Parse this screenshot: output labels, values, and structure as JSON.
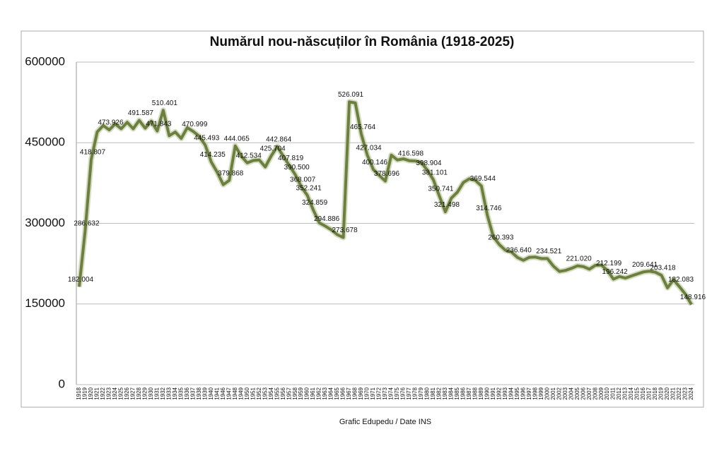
{
  "chart_data": {
    "type": "line",
    "title": "Numărul nou-născuților în România (1918-2025)",
    "source": "Grafic Edupedu / Date INS",
    "categories": [
      "1918",
      "1919",
      "1920",
      "1921",
      "1922",
      "1923",
      "1924",
      "1925",
      "1926",
      "1927",
      "1928",
      "1929",
      "1930",
      "1931",
      "1932",
      "1933",
      "1934",
      "1935",
      "1936",
      "1937",
      "1938",
      "1939",
      "1940",
      "1941",
      "1946",
      "1947",
      "1948",
      "1949",
      "1950",
      "1951",
      "1952",
      "1953",
      "1954",
      "1955",
      "1956",
      "1957",
      "1958",
      "1959",
      "1960",
      "1961",
      "1962",
      "1963",
      "1964",
      "1965",
      "1966",
      "1967",
      "1968",
      "1969",
      "1970",
      "1971",
      "1972",
      "1973",
      "1974",
      "1975",
      "1976",
      "1977",
      "1978",
      "1979",
      "1980",
      "1981",
      "1982",
      "1983",
      "1984",
      "1985",
      "1986",
      "1987",
      "1988",
      "1989",
      "1990",
      "1991",
      "1992",
      "1993",
      "1994",
      "1995",
      "1996",
      "1997",
      "1998",
      "1999",
      "2000",
      "2001",
      "2002",
      "2003",
      "2004",
      "2005",
      "2006",
      "2007",
      "2008",
      "2009",
      "2010",
      "2011",
      "2012",
      "2013",
      "2014",
      "2015",
      "2016",
      "2017",
      "2018",
      "2019",
      "2020",
      "2021",
      "2022",
      "2023",
      "2024"
    ],
    "values": [
      182004,
      286632,
      418807,
      470000,
      482000,
      473926,
      485000,
      476000,
      488000,
      476000,
      491587,
      477000,
      490000,
      471843,
      510401,
      463000,
      470000,
      458000,
      478000,
      470999,
      462000,
      445493,
      414235,
      395000,
      372000,
      379868,
      444065,
      425000,
      412534,
      417000,
      418000,
      405000,
      425704,
      442864,
      425000,
      407819,
      390500,
      368007,
      352241,
      324859,
      301000,
      294886,
      288000,
      279000,
      273678,
      526091,
      524000,
      465764,
      427034,
      400146,
      389000,
      378696,
      427000,
      418000,
      420000,
      416598,
      416000,
      413000,
      398904,
      381101,
      350741,
      321498,
      347000,
      358000,
      376000,
      383000,
      380000,
      369544,
      314746,
      275000,
      260393,
      250000,
      246736,
      236640,
      231348,
      236891,
      237297,
      234600,
      234521,
      220368,
      210529,
      212459,
      216261,
      221020,
      219483,
      214728,
      221900,
      222388,
      212199,
      196242,
      201104,
      198216,
      202223,
      206000,
      209641,
      211000,
      209000,
      203418,
      180000,
      195000,
      182083,
      168000,
      148916
    ],
    "value_labels": [
      "182.004",
      "286.632",
      "418.807",
      null,
      null,
      "473.926",
      null,
      null,
      null,
      null,
      "491.587",
      null,
      null,
      "471.843",
      "510.401",
      null,
      null,
      null,
      null,
      "470.999",
      null,
      "445.493",
      "414.235",
      null,
      null,
      "379.868",
      "444.065",
      null,
      "412.534",
      null,
      null,
      null,
      "425.704",
      "442.864",
      null,
      "407.819",
      "390.500",
      "368.007",
      "352.241",
      "324.859",
      null,
      "294.886",
      null,
      null,
      "273.678",
      "526.091",
      null,
      "465.764",
      "427.034",
      "400.146",
      null,
      "378.696",
      null,
      null,
      null,
      "416.598",
      null,
      null,
      "398.904",
      "381.101",
      "350.741",
      "321.498",
      null,
      null,
      null,
      null,
      null,
      "369.544",
      "314.746",
      null,
      "260.393",
      null,
      null,
      "236.640",
      null,
      null,
      null,
      null,
      "234.521",
      null,
      null,
      null,
      null,
      "221.020",
      null,
      null,
      null,
      null,
      "212.199",
      "196.242",
      null,
      null,
      null,
      null,
      "209.641",
      null,
      null,
      "203.418",
      null,
      null,
      "182.083",
      null,
      "148.916"
    ],
    "color": "#6d7f3f",
    "ylim": [
      0,
      600000
    ],
    "yticks": [
      0,
      150000,
      300000,
      450000,
      600000
    ],
    "grid": true
  }
}
